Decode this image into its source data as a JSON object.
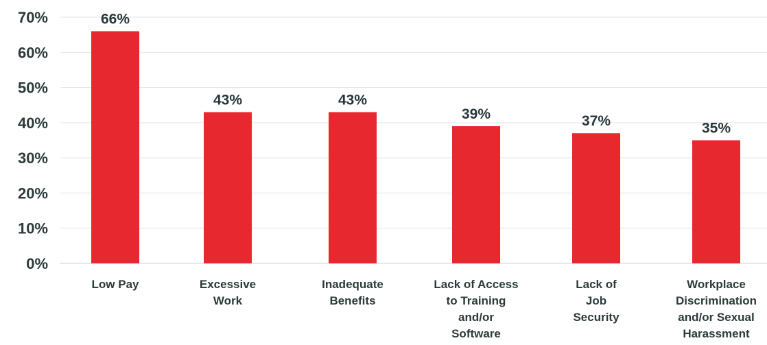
{
  "chart_data": {
    "type": "bar",
    "categories": [
      [
        "Low Pay"
      ],
      [
        "Excessive",
        "Work"
      ],
      [
        "Inadequate",
        "Benefits"
      ],
      [
        "Lack of Access",
        "to Training",
        "and/or",
        "Software"
      ],
      [
        "Lack of",
        "Job",
        "Security"
      ],
      [
        "Workplace",
        "Discrimination",
        "and/or Sexual",
        "Harassment"
      ]
    ],
    "values": [
      66,
      43,
      43,
      39,
      37,
      35
    ],
    "value_labels": [
      "66%",
      "43%",
      "43%",
      "39%",
      "37%",
      "35%"
    ],
    "ylim": [
      0,
      70
    ],
    "y_ticks": [
      0,
      10,
      20,
      30,
      40,
      50,
      60,
      70
    ],
    "y_tick_labels": [
      "0%",
      "10%",
      "20%",
      "30%",
      "40%",
      "50%",
      "60%",
      "70%"
    ],
    "grid": true,
    "bar_color": "#e8282f",
    "title": "",
    "xlabel": "",
    "ylabel": ""
  }
}
